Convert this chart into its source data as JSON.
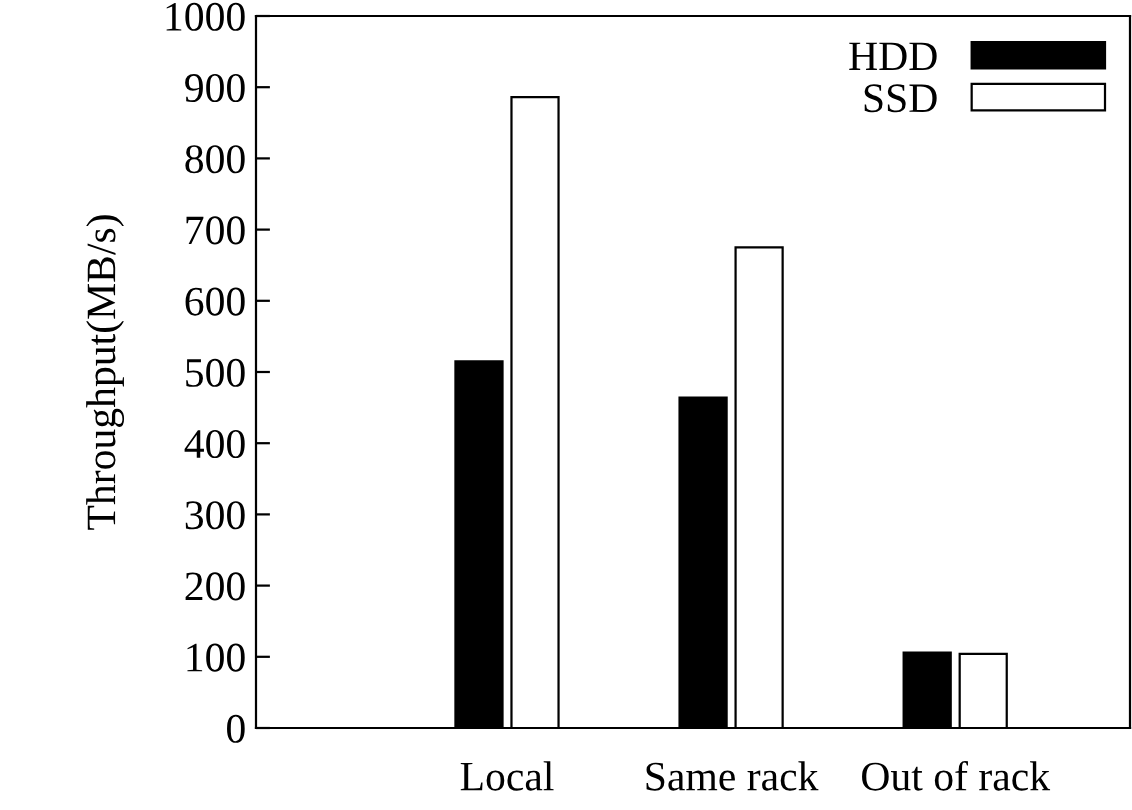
{
  "chart_data": {
    "type": "bar",
    "ylabel": "Throughput(MB/s)",
    "categories": [
      "Local",
      "Same rack",
      "Out of rack"
    ],
    "series": [
      {
        "name": "HDD",
        "color": "#000000",
        "values": [
          515,
          464,
          106
        ]
      },
      {
        "name": "SSD",
        "color": "#ffffff",
        "values": [
          886,
          675,
          104
        ]
      }
    ],
    "ylim": [
      0,
      1000
    ],
    "yticks": [
      0,
      100,
      200,
      300,
      400,
      500,
      600,
      700,
      800,
      900,
      1000
    ],
    "grid": false,
    "legend": "top right"
  }
}
